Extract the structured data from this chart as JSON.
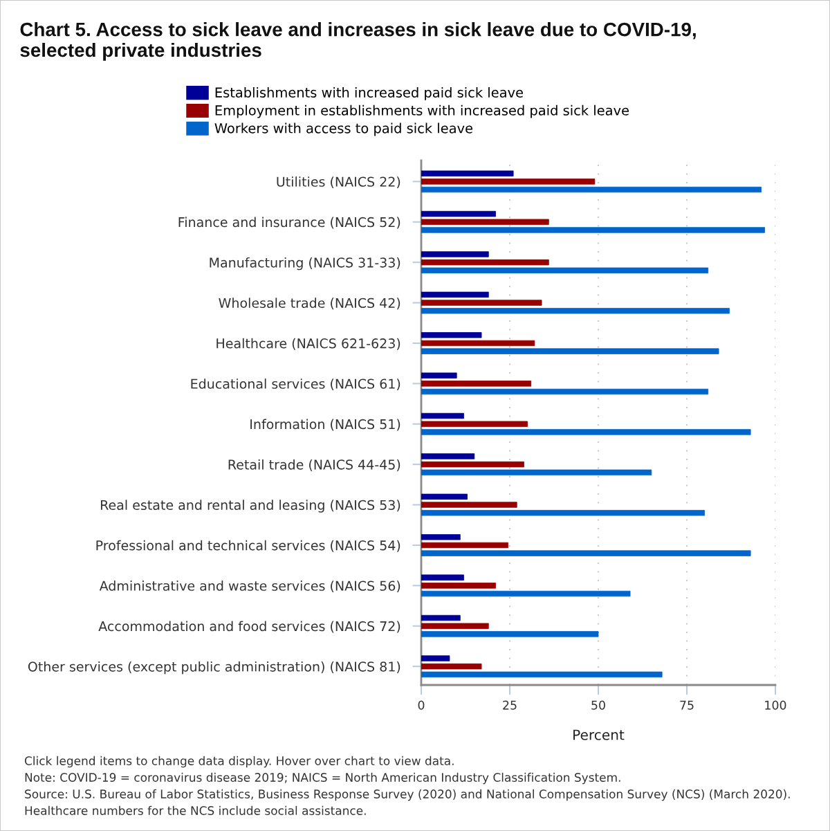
{
  "chart_data": {
    "type": "bar",
    "orientation": "horizontal",
    "title": "Chart 5. Access to sick leave and increases in sick leave due to COVID-19, selected private industries",
    "xlabel": "Percent",
    "categories": [
      "Utilities (NAICS 22)",
      "Finance and insurance (NAICS 52)",
      "Manufacturing (NAICS 31-33)",
      "Wholesale trade (NAICS 42)",
      "Healthcare (NAICS 621-623)",
      "Educational services (NAICS 61)",
      "Information (NAICS 51)",
      "Retail trade (NAICS 44-45)",
      "Real estate and rental and leasing (NAICS 53)",
      "Professional and technical services (NAICS 54)",
      "Administrative and waste services (NAICS 56)",
      "Accommodation and food services (NAICS 72)",
      "Other services (except public administration) (NAICS 81)"
    ],
    "series": [
      {
        "name": "Establishments with increased paid sick leave",
        "color": "#000099",
        "values": [
          26,
          21,
          19,
          19,
          17,
          10,
          12,
          15,
          13,
          11,
          12,
          11,
          8
        ]
      },
      {
        "name": "Employment in establishments with increased paid sick leave",
        "color": "#990000",
        "values": [
          49,
          36,
          36,
          34,
          32,
          31,
          30,
          29,
          27,
          24.5,
          21,
          19,
          17
        ]
      },
      {
        "name": "Workers with access to paid sick leave",
        "color": "#0066cc",
        "values": [
          96,
          97,
          81,
          87,
          84,
          81,
          93,
          65,
          80,
          93,
          59,
          50,
          68
        ]
      }
    ],
    "xlim": [
      0,
      100
    ],
    "xticks": [
      0,
      25,
      50,
      75,
      100
    ],
    "grid": "x",
    "legend": "top",
    "annotations": [
      "Click legend items to change data display. Hover over chart to view data.",
      "Note: COVID-19 = coronavirus disease 2019; NAICS = North American Industry Classification System.",
      "Source: U.S. Bureau of Labor Statistics, Business Response Survey (2020) and National Compensation Survey (NCS) (March 2020).",
      "Healthcare numbers for the NCS include social assistance."
    ]
  }
}
